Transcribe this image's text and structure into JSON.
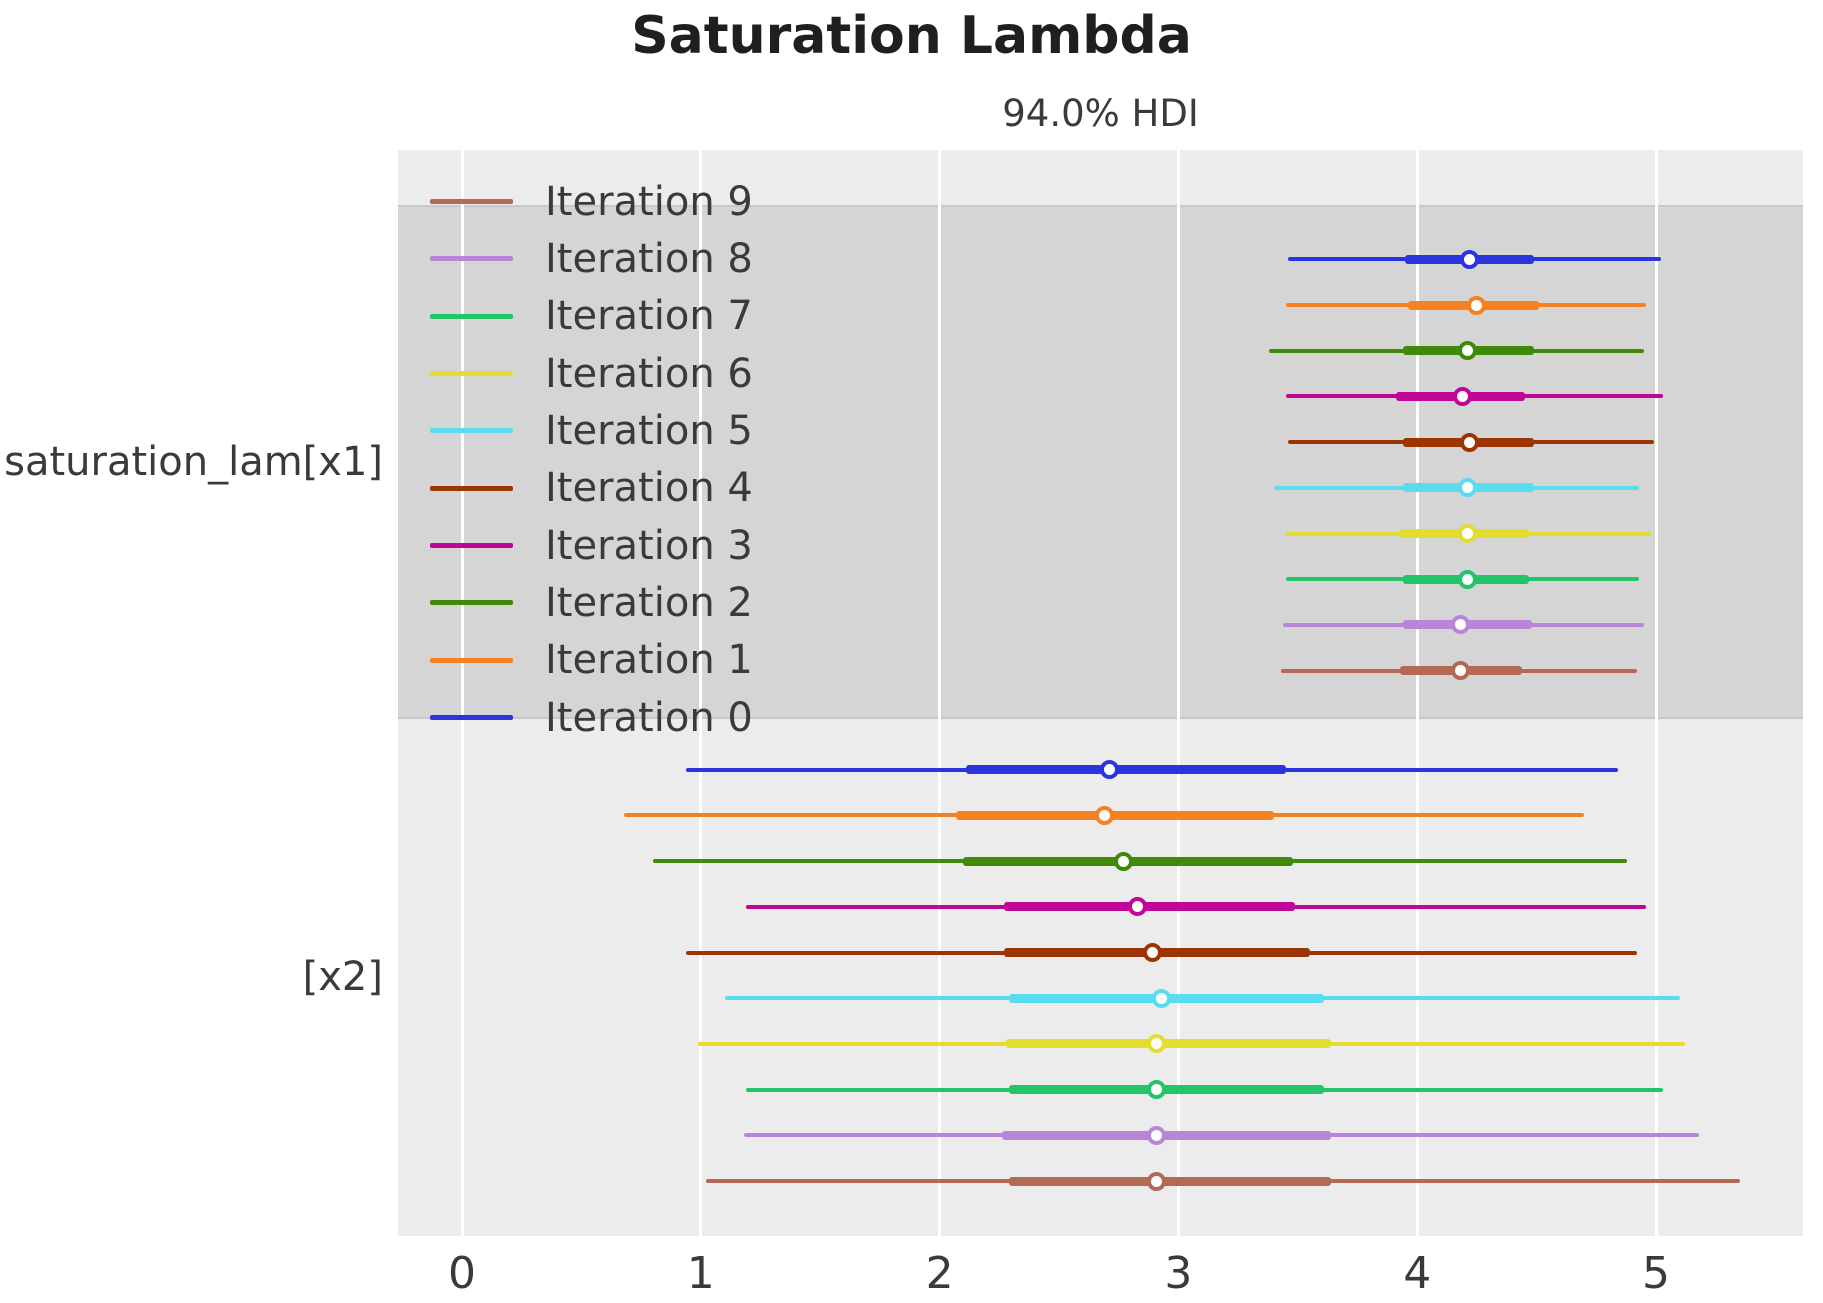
{
  "figure": {
    "title": "Saturation Lambda",
    "subtitle": "94.0% HDI"
  },
  "legend": {
    "entries": [
      {
        "label": "Iteration 9",
        "color": "#b26a55"
      },
      {
        "label": "Iteration 8",
        "color": "#ba84d8"
      },
      {
        "label": "Iteration 7",
        "color": "#22c56a"
      },
      {
        "label": "Iteration 6",
        "color": "#e3dd30"
      },
      {
        "label": "Iteration 5",
        "color": "#5adcf0"
      },
      {
        "label": "Iteration 4",
        "color": "#9c3504"
      },
      {
        "label": "Iteration 3",
        "color": "#c00697"
      },
      {
        "label": "Iteration 2",
        "color": "#3d8b09"
      },
      {
        "label": "Iteration 1",
        "color": "#f5821f"
      },
      {
        "label": "Iteration 0",
        "color": "#2b35de"
      }
    ]
  },
  "chart_data": {
    "type": "forest",
    "title": "Saturation Lambda",
    "subtitle": "94.0% HDI",
    "hdi_prob": "94.0%",
    "xlabel": "",
    "xlim": [
      -0.27,
      5.62
    ],
    "x_ticks": [
      0,
      1,
      2,
      3,
      4,
      5
    ],
    "grid": "vertical-white",
    "legend_position": "upper-left-inside",
    "colors_by_iteration": {
      "Iteration 0": "#2b35de",
      "Iteration 1": "#f5821f",
      "Iteration 2": "#3d8b09",
      "Iteration 3": "#c00697",
      "Iteration 4": "#9c3504",
      "Iteration 5": "#5adcf0",
      "Iteration 6": "#e3dd30",
      "Iteration 7": "#22c56a",
      "Iteration 8": "#ba84d8",
      "Iteration 9": "#b26a55"
    },
    "groups": [
      {
        "label": "saturation_lam[x1]",
        "band": "dark",
        "rows": [
          {
            "iteration": "Iteration 0",
            "color": "#2b35de",
            "hdi_lo": 3.46,
            "q_lo": 3.95,
            "median": 4.22,
            "q_hi": 4.49,
            "hdi_hi": 5.02
          },
          {
            "iteration": "Iteration 1",
            "color": "#f5821f",
            "hdi_lo": 3.45,
            "q_lo": 3.96,
            "median": 4.25,
            "q_hi": 4.51,
            "hdi_hi": 4.96
          },
          {
            "iteration": "Iteration 2",
            "color": "#3d8b09",
            "hdi_lo": 3.38,
            "q_lo": 3.94,
            "median": 4.21,
            "q_hi": 4.49,
            "hdi_hi": 4.95
          },
          {
            "iteration": "Iteration 3",
            "color": "#c00697",
            "hdi_lo": 3.45,
            "q_lo": 3.91,
            "median": 4.19,
            "q_hi": 4.45,
            "hdi_hi": 5.03
          },
          {
            "iteration": "Iteration 4",
            "color": "#9c3504",
            "hdi_lo": 3.46,
            "q_lo": 3.94,
            "median": 4.22,
            "q_hi": 4.49,
            "hdi_hi": 4.99
          },
          {
            "iteration": "Iteration 5",
            "color": "#5adcf0",
            "hdi_lo": 3.4,
            "q_lo": 3.94,
            "median": 4.21,
            "q_hi": 4.49,
            "hdi_hi": 4.93
          },
          {
            "iteration": "Iteration 6",
            "color": "#e3dd30",
            "hdi_lo": 3.45,
            "q_lo": 3.93,
            "median": 4.21,
            "q_hi": 4.47,
            "hdi_hi": 4.98
          },
          {
            "iteration": "Iteration 7",
            "color": "#22c56a",
            "hdi_lo": 3.45,
            "q_lo": 3.94,
            "median": 4.21,
            "q_hi": 4.47,
            "hdi_hi": 4.93
          },
          {
            "iteration": "Iteration 8",
            "color": "#ba84d8",
            "hdi_lo": 3.44,
            "q_lo": 3.94,
            "median": 4.18,
            "q_hi": 4.48,
            "hdi_hi": 4.95
          },
          {
            "iteration": "Iteration 9",
            "color": "#b26a55",
            "hdi_lo": 3.43,
            "q_lo": 3.93,
            "median": 4.18,
            "q_hi": 4.44,
            "hdi_hi": 4.92
          }
        ]
      },
      {
        "label": "[x2]",
        "band": "light",
        "rows": [
          {
            "iteration": "Iteration 0",
            "color": "#2b35de",
            "hdi_lo": 0.94,
            "q_lo": 2.11,
            "median": 2.71,
            "q_hi": 3.45,
            "hdi_hi": 4.84
          },
          {
            "iteration": "Iteration 1",
            "color": "#f5821f",
            "hdi_lo": 0.68,
            "q_lo": 2.07,
            "median": 2.69,
            "q_hi": 3.4,
            "hdi_hi": 4.7
          },
          {
            "iteration": "Iteration 2",
            "color": "#3d8b09",
            "hdi_lo": 0.8,
            "q_lo": 2.1,
            "median": 2.77,
            "q_hi": 3.48,
            "hdi_hi": 4.88
          },
          {
            "iteration": "Iteration 3",
            "color": "#c00697",
            "hdi_lo": 1.19,
            "q_lo": 2.27,
            "median": 2.83,
            "q_hi": 3.49,
            "hdi_hi": 4.96
          },
          {
            "iteration": "Iteration 4",
            "color": "#9c3504",
            "hdi_lo": 0.94,
            "q_lo": 2.27,
            "median": 2.89,
            "q_hi": 3.55,
            "hdi_hi": 4.92
          },
          {
            "iteration": "Iteration 5",
            "color": "#5adcf0",
            "hdi_lo": 1.1,
            "q_lo": 2.29,
            "median": 2.93,
            "q_hi": 3.61,
            "hdi_hi": 5.1
          },
          {
            "iteration": "Iteration 6",
            "color": "#e3dd30",
            "hdi_lo": 0.99,
            "q_lo": 2.28,
            "median": 2.91,
            "q_hi": 3.64,
            "hdi_hi": 5.12
          },
          {
            "iteration": "Iteration 7",
            "color": "#22c56a",
            "hdi_lo": 1.19,
            "q_lo": 2.29,
            "median": 2.91,
            "q_hi": 3.61,
            "hdi_hi": 5.03
          },
          {
            "iteration": "Iteration 8",
            "color": "#ba84d8",
            "hdi_lo": 1.18,
            "q_lo": 2.26,
            "median": 2.91,
            "q_hi": 3.64,
            "hdi_hi": 5.18
          },
          {
            "iteration": "Iteration 9",
            "color": "#b26a55",
            "hdi_lo": 1.02,
            "q_lo": 2.29,
            "median": 2.91,
            "q_hi": 3.64,
            "hdi_hi": 5.35
          }
        ]
      }
    ]
  }
}
